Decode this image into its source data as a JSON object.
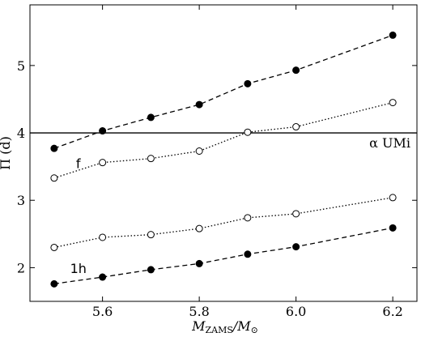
{
  "chart_data": {
    "type": "line",
    "xlabel_main": "M",
    "xlabel_sub": "ZAMS",
    "xlabel_rest": "/M",
    "xlabel_sub2": "⊙",
    "ylabel": "Π (d)",
    "xlim": [
      5.45,
      6.25
    ],
    "ylim": [
      1.5,
      5.9
    ],
    "x_ticks": [
      5.6,
      5.8,
      6.0,
      6.2
    ],
    "x_tick_labels": [
      "5.6",
      "5.8",
      "6.0",
      "6.2"
    ],
    "y_ticks": [
      2,
      3,
      4,
      5
    ],
    "y_tick_labels": [
      "2",
      "3",
      "4",
      "5"
    ],
    "hline": {
      "y": 4.0,
      "label": "α UMi"
    },
    "annotations": [
      {
        "text": "f",
        "x": 5.55,
        "y": 3.48
      },
      {
        "text": "1h",
        "x": 5.55,
        "y": 1.92
      }
    ],
    "x": [
      5.5,
      5.6,
      5.7,
      5.8,
      5.9,
      6.0,
      6.2
    ],
    "series": [
      {
        "style": "dashed",
        "marker": "filled",
        "values": [
          3.77,
          4.03,
          4.23,
          4.42,
          4.73,
          4.93,
          5.45
        ]
      },
      {
        "style": "dotted",
        "marker": "open",
        "values": [
          3.33,
          3.56,
          3.62,
          3.73,
          4.01,
          4.09,
          4.45
        ]
      },
      {
        "style": "dotted",
        "marker": "open",
        "values": [
          2.3,
          2.45,
          2.49,
          2.58,
          2.74,
          2.8,
          3.04
        ]
      },
      {
        "style": "dashed",
        "marker": "filled",
        "values": [
          1.76,
          1.86,
          1.97,
          2.06,
          2.2,
          2.31,
          2.59
        ]
      }
    ]
  }
}
